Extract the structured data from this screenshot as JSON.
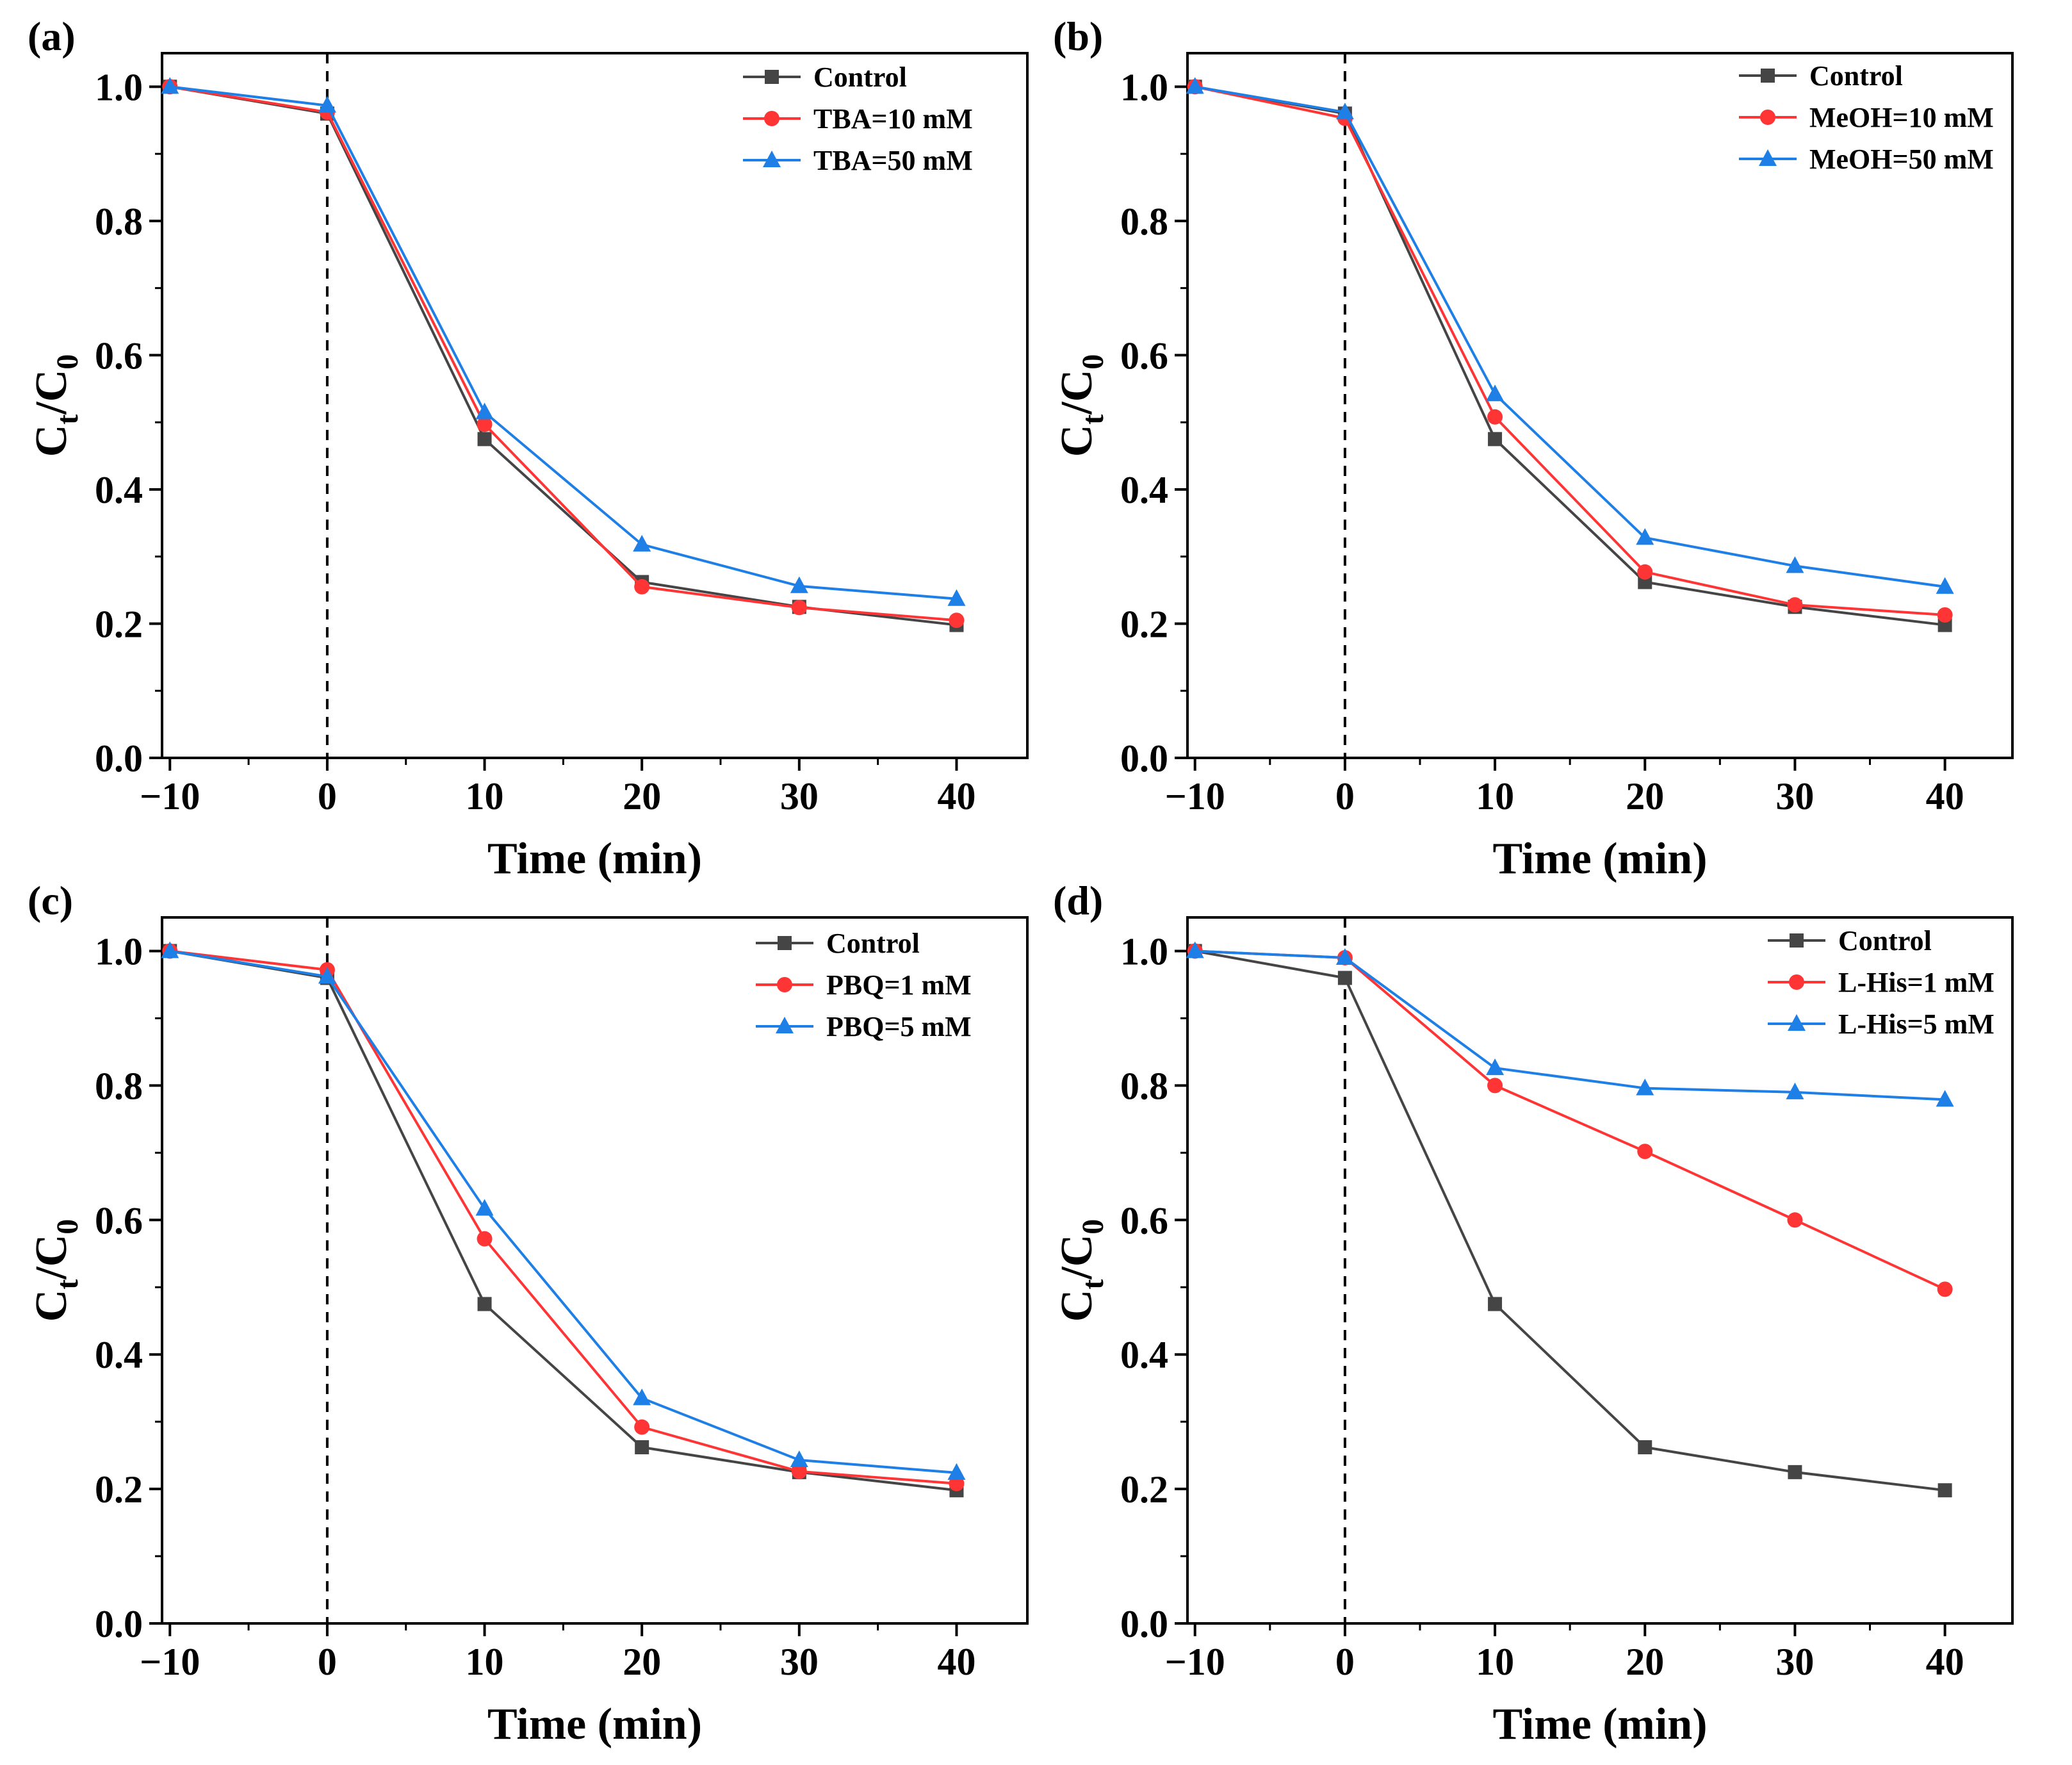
{
  "figure": {
    "colors": {
      "control": "#454545",
      "reagent_low": "#ff3535",
      "reagent_high": "#1e7fe6",
      "axis": "#000000",
      "dashed_line": "#000000"
    }
  },
  "chart_data": [
    {
      "panel": "(a)",
      "type": "line",
      "x": [
        -10,
        0,
        10,
        20,
        30,
        40
      ],
      "xlabel": "Time (min)",
      "ylabel_main": "C",
      "ylabel_sub": "t",
      "ylabel_sep": "/C",
      "ylabel_sub2": "0",
      "xlim": [
        -10.5,
        44.5
      ],
      "ylim": [
        0,
        1.05
      ],
      "xticks": [
        -10,
        0,
        10,
        20,
        30,
        40
      ],
      "xtick_labels": [
        "−10",
        "0",
        "10",
        "20",
        "30",
        "40"
      ],
      "yticks": [
        0.0,
        0.2,
        0.4,
        0.6,
        0.8,
        1.0
      ],
      "ytick_labels": [
        "0.0",
        "0.2",
        "0.4",
        "0.6",
        "0.8",
        "1.0"
      ],
      "vline_x": 0,
      "legend_position": "top-right",
      "series": [
        {
          "name": "Control",
          "marker": "square",
          "color": "#454545",
          "values": [
            1.0,
            0.96,
            0.475,
            0.262,
            0.225,
            0.198
          ]
        },
        {
          "name": "TBA=10 mM",
          "marker": "circle",
          "color": "#ff3535",
          "values": [
            1.0,
            0.962,
            0.497,
            0.255,
            0.224,
            0.205
          ]
        },
        {
          "name": "TBA=50 mM",
          "marker": "triangle",
          "color": "#1e7fe6",
          "values": [
            1.0,
            0.972,
            0.515,
            0.318,
            0.256,
            0.237
          ]
        }
      ]
    },
    {
      "panel": "(b)",
      "type": "line",
      "x": [
        -10,
        0,
        10,
        20,
        30,
        40
      ],
      "xlabel": "Time (min)",
      "ylabel_main": "C",
      "ylabel_sub": "t",
      "ylabel_sep": "/C",
      "ylabel_sub2": "0",
      "xlim": [
        -10.5,
        44.5
      ],
      "ylim": [
        0,
        1.05
      ],
      "xticks": [
        -10,
        0,
        10,
        20,
        30,
        40
      ],
      "xtick_labels": [
        "−10",
        "0",
        "10",
        "20",
        "30",
        "40"
      ],
      "yticks": [
        0.0,
        0.2,
        0.4,
        0.6,
        0.8,
        1.0
      ],
      "ytick_labels": [
        "0.0",
        "0.2",
        "0.4",
        "0.6",
        "0.8",
        "1.0"
      ],
      "vline_x": 0,
      "legend_position": "top-right",
      "series": [
        {
          "name": "Control",
          "marker": "square",
          "color": "#454545",
          "values": [
            1.0,
            0.96,
            0.475,
            0.262,
            0.225,
            0.198
          ]
        },
        {
          "name": "MeOH=10 mM",
          "marker": "circle",
          "color": "#ff3535",
          "values": [
            1.0,
            0.953,
            0.508,
            0.277,
            0.228,
            0.213
          ]
        },
        {
          "name": "MeOH=50 mM",
          "marker": "triangle",
          "color": "#1e7fe6",
          "values": [
            1.0,
            0.962,
            0.542,
            0.328,
            0.286,
            0.255
          ]
        }
      ]
    },
    {
      "panel": "(c)",
      "type": "line",
      "x": [
        -10,
        0,
        10,
        20,
        30,
        40
      ],
      "xlabel": "Time (min)",
      "ylabel_main": "C",
      "ylabel_sub": "t",
      "ylabel_sep": "/C",
      "ylabel_sub2": "0",
      "xlim": [
        -10.5,
        44.5
      ],
      "ylim": [
        0,
        1.05
      ],
      "xticks": [
        -10,
        0,
        10,
        20,
        30,
        40
      ],
      "xtick_labels": [
        "−10",
        "0",
        "10",
        "20",
        "30",
        "40"
      ],
      "yticks": [
        0.0,
        0.2,
        0.4,
        0.6,
        0.8,
        1.0
      ],
      "ytick_labels": [
        "0.0",
        "0.2",
        "0.4",
        "0.6",
        "0.8",
        "1.0"
      ],
      "vline_x": 0,
      "legend_position": "top-right",
      "series": [
        {
          "name": "Control",
          "marker": "square",
          "color": "#454545",
          "values": [
            1.0,
            0.96,
            0.475,
            0.262,
            0.225,
            0.198
          ]
        },
        {
          "name": "PBQ=1 mM",
          "marker": "circle",
          "color": "#ff3535",
          "values": [
            1.0,
            0.972,
            0.572,
            0.292,
            0.226,
            0.208
          ]
        },
        {
          "name": "PBQ=5 mM",
          "marker": "triangle",
          "color": "#1e7fe6",
          "values": [
            1.0,
            0.962,
            0.617,
            0.335,
            0.243,
            0.224
          ]
        }
      ]
    },
    {
      "panel": "(d)",
      "type": "line",
      "x": [
        -10,
        0,
        10,
        20,
        30,
        40
      ],
      "xlabel": "Time (min)",
      "ylabel_main": "C",
      "ylabel_sub": "t",
      "ylabel_sep": "/C",
      "ylabel_sub2": "0",
      "xlim": [
        -10.5,
        44.5
      ],
      "ylim": [
        0,
        1.05
      ],
      "xticks": [
        -10,
        0,
        10,
        20,
        30,
        40
      ],
      "xtick_labels": [
        "−10",
        "0",
        "10",
        "20",
        "30",
        "40"
      ],
      "yticks": [
        0.0,
        0.2,
        0.4,
        0.6,
        0.8,
        1.0
      ],
      "ytick_labels": [
        "0.0",
        "0.2",
        "0.4",
        "0.6",
        "0.8",
        "1.0"
      ],
      "vline_x": 0,
      "legend_position": "top-right",
      "series": [
        {
          "name": "Control",
          "marker": "square",
          "color": "#454545",
          "values": [
            1.0,
            0.96,
            0.475,
            0.262,
            0.225,
            0.198
          ]
        },
        {
          "name": "L-His=1 mM",
          "marker": "circle",
          "color": "#ff3535",
          "values": [
            1.0,
            0.99,
            0.8,
            0.702,
            0.6,
            0.497
          ]
        },
        {
          "name": "L-His=5 mM",
          "marker": "triangle",
          "color": "#1e7fe6",
          "values": [
            1.0,
            0.99,
            0.826,
            0.796,
            0.79,
            0.779
          ]
        }
      ]
    }
  ]
}
